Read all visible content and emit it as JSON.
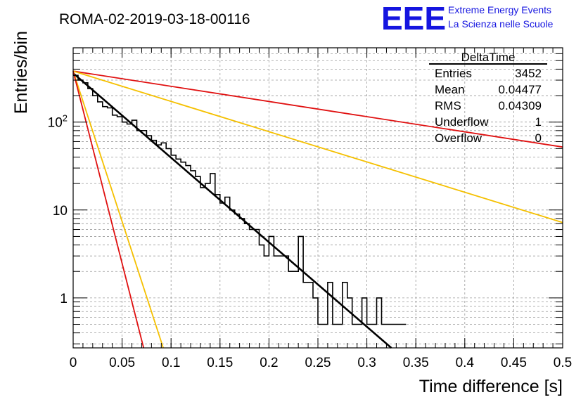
{
  "header": {
    "run_title": "ROMA-02-2019-03-18-00116",
    "logo_text": "EEE",
    "logo_line1": "Extreme Energy Events",
    "logo_line2": "La Scienza nelle Scuole"
  },
  "stats_box": {
    "title": "DeltaTime",
    "rows": [
      {
        "label": "Entries",
        "value": "3452"
      },
      {
        "label": "Mean",
        "value": "0.04477"
      },
      {
        "label": "RMS",
        "value": "0.04309"
      },
      {
        "label": "Underflow",
        "value": "1"
      },
      {
        "label": "Overflow",
        "value": "0"
      }
    ]
  },
  "colors": {
    "histogram": "#000000",
    "fit": "#000000",
    "red": "#e01010",
    "orange": "#f5c000",
    "logo": "#1515e0"
  },
  "chart_data": {
    "type": "histogram",
    "xlabel": "Time difference [s]",
    "ylabel": "Entries/bin",
    "xlim": [
      0,
      0.5
    ],
    "ylim": [
      0.27,
      700
    ],
    "yscale": "log",
    "grid": true,
    "x_ticks": [
      0,
      0.05,
      0.1,
      0.15,
      0.2,
      0.25,
      0.3,
      0.35,
      0.4,
      0.45,
      0.5
    ],
    "x_tick_labels": [
      "0",
      "0.05",
      "0.1",
      "0.15",
      "0.2",
      "0.25",
      "0.3",
      "0.35",
      "0.4",
      "0.45",
      "0.5"
    ],
    "y_ticks": [
      1,
      10,
      100
    ],
    "y_tick_labels": [
      "1",
      "10",
      "10^2"
    ],
    "bin_width": 0.005,
    "bin_start": 0,
    "counts": [
      340,
      300,
      280,
      240,
      200,
      170,
      150,
      145,
      120,
      115,
      100,
      95,
      105,
      80,
      80,
      70,
      62,
      55,
      58,
      50,
      42,
      38,
      35,
      32,
      28,
      24,
      18,
      20,
      26,
      15,
      12,
      14,
      10,
      9,
      8,
      7,
      6,
      6,
      4,
      3,
      5,
      3,
      3,
      3,
      2,
      2,
      5,
      1.5,
      1.5,
      1,
      0.5,
      0.5,
      1.5,
      0.5,
      0.5,
      1.5,
      1,
      0.5,
      0.5,
      1,
      0.5,
      0.5,
      1,
      0.5,
      0.5,
      0.5,
      0.5,
      0.5
    ],
    "series": [
      {
        "kind": "fit",
        "color": "#000000",
        "x": [
          0,
          0.325
        ],
        "y": [
          360,
          0.27
        ]
      },
      {
        "kind": "reference",
        "color": "#e01010",
        "x": [
          0,
          0.5
        ],
        "y": [
          380,
          52
        ]
      },
      {
        "kind": "reference",
        "color": "#f5c000",
        "x": [
          0,
          0.5
        ],
        "y": [
          380,
          7.2
        ]
      },
      {
        "kind": "reference",
        "color": "#f5c000",
        "x": [
          0,
          0.092
        ],
        "y": [
          380,
          0.27
        ]
      },
      {
        "kind": "reference",
        "color": "#e01010",
        "x": [
          0,
          0.072
        ],
        "y": [
          380,
          0.27
        ]
      }
    ]
  }
}
